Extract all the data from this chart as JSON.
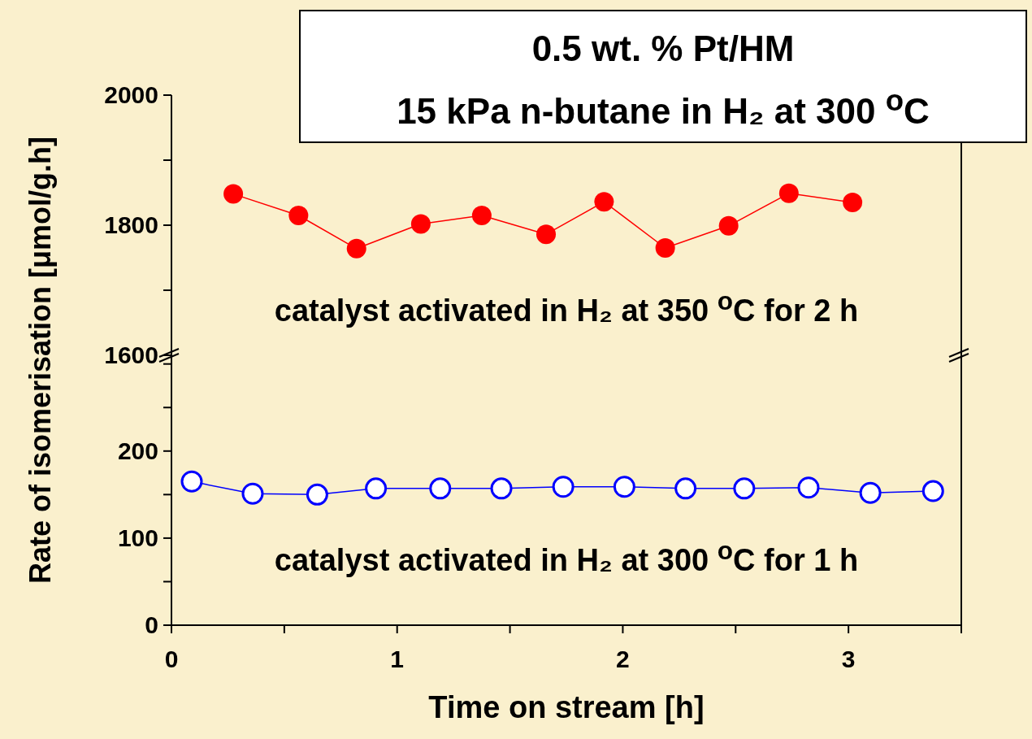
{
  "chart_data": [
    {
      "type": "line",
      "title": "0.5 wt. % Pt/HM",
      "subtitle": "15 kPa n-butane in H₂ at 300 $^{o}$C",
      "ylabel": "Rate of isomerisation [μmol/g.h]",
      "annotations": [
        "catalyst activated in H₂ at 350 $^{o}$C for 2 h"
      ],
      "marker": "circle",
      "tick_labels": "y",
      "xlim": [
        0,
        3.5
      ],
      "ylim": [
        1600,
        2000
      ],
      "yticks": [
        1600,
        {
          "value": 1700,
          "label": null
        },
        1800,
        {
          "value": 1900,
          "label": null
        },
        2000
      ],
      "series": [
        {
          "color": "#ff0000",
          "x": [
            0.274,
            0.563,
            0.82,
            1.105,
            1.375,
            1.66,
            1.917,
            2.188,
            2.469,
            2.736,
            3.018
          ],
          "values": [
            1848,
            1815,
            1764,
            1802,
            1815,
            1786,
            1836,
            1765,
            1799,
            1849,
            1835
          ]
        }
      ]
    },
    {
      "type": "line",
      "xlabel": "Time on stream [h]",
      "annotations": [
        "catalyst activated in H₂ at 300 $^{o}$C for 1 h"
      ],
      "marker": "circle",
      "xlim": [
        0,
        3.5
      ],
      "ylim": [
        0,
        310
      ],
      "xticks": [
        0,
        {
          "value": 0.5,
          "label": null
        },
        1,
        {
          "value": 1.5,
          "label": null
        },
        2,
        {
          "value": 2.5,
          "label": null
        },
        3,
        {
          "value": 3.5,
          "label": null
        }
      ],
      "yticks": [
        0,
        {
          "value": 50,
          "label": null
        },
        100,
        {
          "value": 150,
          "label": null
        },
        200,
        {
          "value": 250,
          "label": null
        },
        {
          "value": 300,
          "label": null
        }
      ],
      "series": [
        {
          "color": "#0000ff",
          "x": [
            0.09,
            0.36,
            0.646,
            0.906,
            1.191,
            1.462,
            1.736,
            2.007,
            2.278,
            2.538,
            2.823,
            3.097,
            3.375
          ],
          "values": [
            165,
            151,
            150,
            157,
            157,
            157,
            159,
            159,
            157,
            157,
            158,
            152,
            154
          ]
        }
      ]
    }
  ]
}
